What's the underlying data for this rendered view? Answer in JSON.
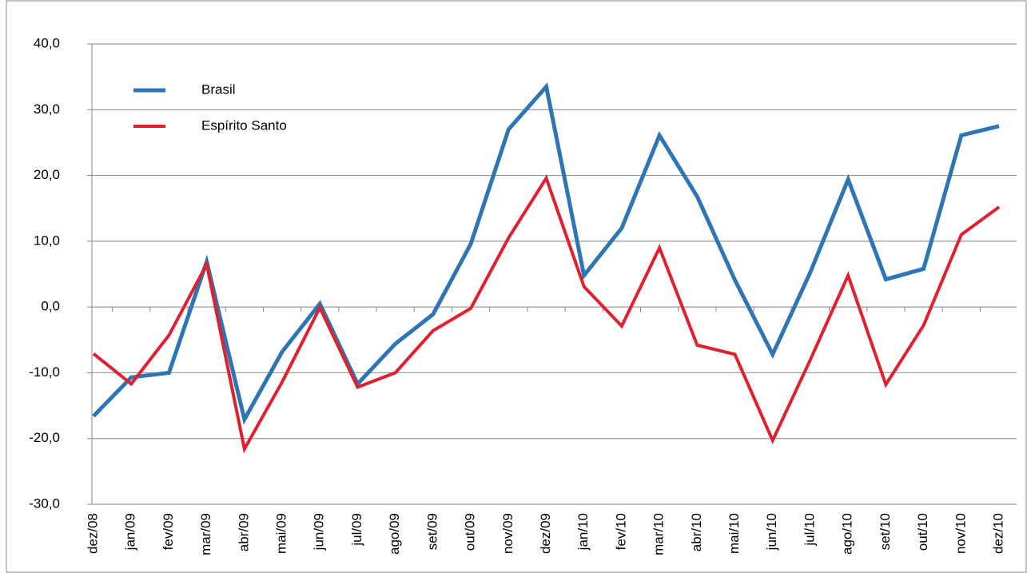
{
  "chart_data": {
    "type": "line",
    "categories": [
      "dez/08",
      "jan/09",
      "fev/09",
      "mar/09",
      "abr/09",
      "mai/09",
      "jun/09",
      "jul/09",
      "ago/09",
      "set/09",
      "out/09",
      "nov/09",
      "dez/09",
      "jan/10",
      "fev/10",
      "mar/10",
      "abr/10",
      "mai/10",
      "jun/10",
      "jul/10",
      "ago/10",
      "set/10",
      "out/10",
      "nov/10",
      "dez/10"
    ],
    "series": [
      {
        "name": "Brasil",
        "color": "#2e75b6",
        "values": [
          -16.6,
          -10.7,
          -10.0,
          6.9,
          -17.1,
          -6.8,
          0.5,
          -11.7,
          -5.6,
          -1.1,
          9.6,
          27.0,
          33.5,
          4.8,
          12.0,
          26.1,
          16.8,
          4.1,
          -7.2,
          5.3,
          19.4,
          4.2,
          5.8,
          26.1,
          27.5
        ]
      },
      {
        "name": "Espírito Santo",
        "color": "#e0202e",
        "values": [
          -7.1,
          -11.7,
          -4.3,
          6.5,
          -21.6,
          -11.4,
          -0.1,
          -12.2,
          -10.0,
          -3.6,
          -0.2,
          10.5,
          19.6,
          3.1,
          -2.9,
          9.0,
          -5.8,
          -7.2,
          -20.3,
          -8.0,
          4.8,
          -11.8,
          -2.8,
          11.0,
          15.2
        ]
      }
    ],
    "ylim": [
      -30,
      40
    ],
    "yticks": [
      {
        "value": -30,
        "label": "-30,0"
      },
      {
        "value": -20,
        "label": "-20,0"
      },
      {
        "value": -10,
        "label": "-10,0"
      },
      {
        "value": 0,
        "label": "0,0"
      },
      {
        "value": 10,
        "label": "10,0"
      },
      {
        "value": 20,
        "label": "20,0"
      },
      {
        "value": 30,
        "label": "30,0"
      },
      {
        "value": 40,
        "label": "40,0"
      }
    ],
    "grid": true
  }
}
